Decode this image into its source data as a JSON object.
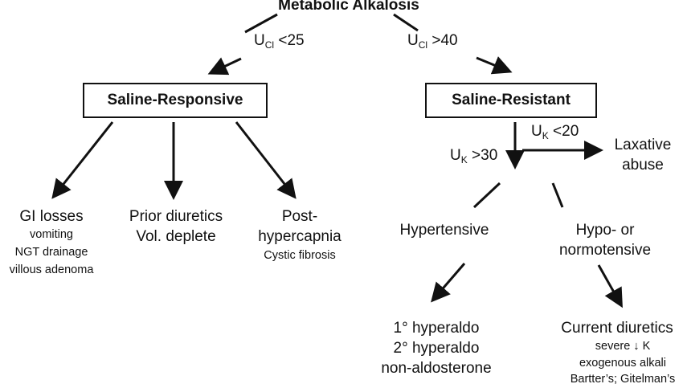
{
  "root": {
    "label": "Metabolic Alkalosis"
  },
  "branches": {
    "left_condition": {
      "prefix": "U",
      "sub": "Cl",
      "rest": " <25"
    },
    "right_condition": {
      "prefix": "U",
      "sub": "Cl",
      "rest": " >40"
    }
  },
  "saline_responsive": {
    "label": "Saline-Responsive",
    "gi": {
      "title": "GI losses",
      "items": [
        "vomiting",
        "NGT drainage",
        "villous adenoma"
      ]
    },
    "diuretics": {
      "lines": [
        "Prior diuretics",
        "Vol. deplete"
      ]
    },
    "post": {
      "lines": [
        "Post-",
        "hypercapnia"
      ],
      "items": [
        "Cystic fibrosis"
      ]
    }
  },
  "saline_resistant": {
    "label": "Saline-Resistant",
    "uk_low": {
      "prefix": "U",
      "sub": "K",
      "rest": " <20"
    },
    "uk_high": {
      "prefix": "U",
      "sub": "K",
      "rest": " >30"
    },
    "laxative": {
      "lines": [
        "Laxative",
        "abuse"
      ]
    },
    "hypertensive": {
      "label": "Hypertensive",
      "outcomes": [
        "1° hyperaldo",
        "2° hyperaldo",
        "non-aldosterone"
      ]
    },
    "hypo_normo": {
      "lines": [
        "Hypo- or",
        "normotensive"
      ],
      "outcome_title": "Current diuretics",
      "items": [
        "severe ↓ K",
        "exogenous alkali",
        "Bartter’s; Gitelman’s"
      ]
    }
  },
  "colors": {
    "ink": "#111111",
    "background": "#ffffff"
  }
}
